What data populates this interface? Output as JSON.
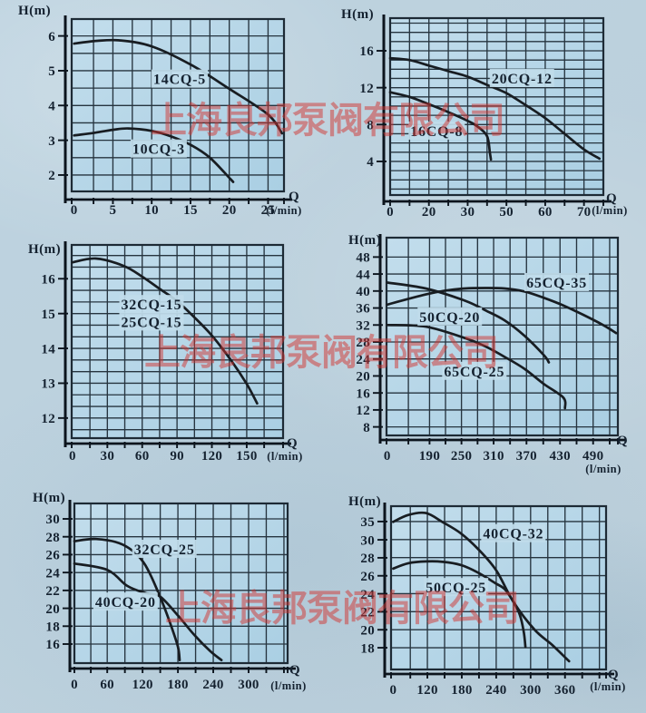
{
  "watermark": {
    "text": "上海良邦泵阀有限公司",
    "color": "#d23430"
  },
  "chart_data": [
    {
      "id": "14CQ-5-10CQ-3",
      "type": "line",
      "y_axis_label": "H(m)",
      "x_axis_label": "Q",
      "x_axis_unit": "(l/min)",
      "x_ticks": [
        [
          "0",
          0
        ],
        [
          "5",
          5
        ],
        [
          "10",
          10
        ],
        [
          "15",
          15
        ],
        [
          "20",
          20
        ],
        [
          "25",
          25
        ]
      ],
      "y_ticks": [
        [
          "6",
          6
        ],
        [
          "5",
          5
        ],
        [
          "4",
          4
        ],
        [
          "3",
          3
        ],
        [
          "2",
          2
        ]
      ],
      "x_stops": [
        [
          0,
          0.0115
        ],
        [
          25,
          0.925
        ]
      ],
      "y_stops": [
        [
          6,
          0.098
        ],
        [
          2,
          0.905
        ]
      ],
      "series": [
        {
          "name": "14CQ-5",
          "points": [
            [
              0,
              5.78
            ],
            [
              3,
              5.86
            ],
            [
              6,
              5.87
            ],
            [
              10,
              5.7
            ],
            [
              15,
              5.18
            ],
            [
              20,
              4.48
            ],
            [
              25,
              3.74
            ],
            [
              26.8,
              3.2
            ]
          ]
        },
        {
          "name": "10CQ-3",
          "points": [
            [
              0,
              3.14
            ],
            [
              2.5,
              3.21
            ],
            [
              5,
              3.3
            ],
            [
              7,
              3.34
            ],
            [
              10,
              3.27
            ],
            [
              12.5,
              3.11
            ],
            [
              15,
              2.87
            ],
            [
              17.5,
              2.5
            ],
            [
              20,
              1.92
            ],
            [
              20.5,
              1.8
            ]
          ]
        }
      ],
      "curve_labels": [
        {
          "text": "14CQ-5",
          "at": [
            13.6,
            4.76
          ]
        },
        {
          "text": "10CQ-3",
          "at": [
            10.9,
            2.75
          ]
        }
      ]
    },
    {
      "id": "20CQ-12-16CQ-8",
      "type": "line",
      "y_axis_label": "H(m)",
      "x_axis_label": "Q",
      "x_axis_unit": "(l/min)",
      "x_ticks": [
        [
          "0",
          0
        ],
        [
          "20",
          20
        ],
        [
          "30",
          30
        ],
        [
          "50",
          50
        ],
        [
          "60",
          60
        ],
        [
          "70",
          70
        ]
      ],
      "y_ticks": [
        [
          "16",
          16
        ],
        [
          "12",
          12
        ],
        [
          "8",
          8
        ],
        [
          "4",
          4
        ]
      ],
      "x_stops": [
        [
          0,
          0.0
        ],
        [
          20,
          0.1818
        ],
        [
          30,
          0.3636
        ],
        [
          50,
          0.5455
        ],
        [
          60,
          0.7273
        ],
        [
          70,
          0.9091
        ]
      ],
      "y_stops": [
        [
          16,
          0.1846
        ],
        [
          4,
          0.81
        ]
      ],
      "series": [
        {
          "name": "20CQ-12",
          "points": [
            [
              0,
              15.2
            ],
            [
              10,
              15.0
            ],
            [
              20,
              14.4
            ],
            [
              25,
              13.8
            ],
            [
              30,
              13.2
            ],
            [
              40,
              12.3
            ],
            [
              50,
              11.4
            ],
            [
              55,
              10.1
            ],
            [
              60,
              8.7
            ],
            [
              65,
              7.0
            ],
            [
              70,
              5.3
            ],
            [
              74,
              4.3
            ]
          ]
        },
        {
          "name": "16CQ-8",
          "points": [
            [
              0,
              11.5
            ],
            [
              10,
              11.0
            ],
            [
              20,
              10.2
            ],
            [
              25,
              9.35
            ],
            [
              30,
              8.4
            ],
            [
              35,
              7.8
            ],
            [
              40,
              6.75
            ],
            [
              41.5,
              4.9
            ],
            [
              42,
              4.2
            ]
          ]
        }
      ],
      "curve_labels": [
        {
          "text": "20CQ-12",
          "at": [
            54,
            13.0
          ]
        },
        {
          "text": "16CQ-8",
          "at": [
            22,
            7.3
          ]
        }
      ]
    },
    {
      "id": "32CQ-15-25CQ-15",
      "type": "line",
      "y_axis_label": "H(m)",
      "x_axis_label": "Q",
      "x_axis_unit": "(l/min)",
      "x_ticks": [
        [
          "0",
          0
        ],
        [
          "30",
          30
        ],
        [
          "60",
          60
        ],
        [
          "90",
          90
        ],
        [
          "120",
          120
        ],
        [
          "150",
          150
        ]
      ],
      "y_ticks": [
        [
          "16",
          16
        ],
        [
          "15",
          15
        ],
        [
          "14",
          14
        ],
        [
          "13",
          13
        ],
        [
          "12",
          12
        ]
      ],
      "x_stops": [
        [
          0,
          0.004
        ],
        [
          150,
          0.828
        ]
      ],
      "y_stops": [
        [
          16,
          0.175
        ],
        [
          12,
          0.896
        ]
      ],
      "series": [
        {
          "name": "32CQ-15 / 25CQ-15",
          "points": [
            [
              0,
              16.47
            ],
            [
              20,
              16.58
            ],
            [
              44,
              16.37
            ],
            [
              60,
              16.06
            ],
            [
              75,
              15.71
            ],
            [
              90,
              15.36
            ],
            [
              105,
              14.89
            ],
            [
              120,
              14.37
            ],
            [
              136,
              13.68
            ],
            [
              150,
              12.98
            ],
            [
              159,
              12.42
            ]
          ]
        }
      ],
      "curve_labels": [
        {
          "text": "32CQ-15",
          "at": [
            68,
            15.26
          ]
        },
        {
          "text": "25CQ-15",
          "at": [
            68,
            14.76
          ]
        }
      ]
    },
    {
      "id": "65CQ-35-50CQ-20-65CQ-25",
      "type": "line",
      "y_axis_label": "H(m)",
      "x_axis_label": "Q",
      "x_axis_unit": "(l/min)",
      "x_ticks": [
        [
          "0",
          0
        ],
        [
          "190",
          190
        ],
        [
          "250",
          250
        ],
        [
          "310",
          310
        ],
        [
          "370",
          370
        ],
        [
          "430",
          430
        ],
        [
          "490",
          490
        ]
      ],
      "y_ticks": [
        [
          "48",
          48
        ],
        [
          "44",
          44
        ],
        [
          "40",
          40
        ],
        [
          "36",
          36
        ],
        [
          "32",
          32
        ],
        [
          "28",
          28
        ],
        [
          "24",
          24
        ],
        [
          "20",
          20
        ],
        [
          "16",
          16
        ],
        [
          "12",
          12
        ],
        [
          "8",
          8
        ]
      ],
      "x_stops": [
        [
          0,
          0.003
        ],
        [
          190,
          0.186
        ],
        [
          250,
          0.324
        ],
        [
          310,
          0.463
        ],
        [
          370,
          0.605
        ],
        [
          430,
          0.75
        ],
        [
          490,
          0.893
        ]
      ],
      "y_stops": [
        [
          48,
          0.098
        ],
        [
          8,
          0.957
        ]
      ],
      "series": [
        {
          "name": "50CQ-20",
          "points": [
            [
              0,
              42.0
            ],
            [
              173,
              40.6
            ],
            [
              257,
              37.7
            ],
            [
              294,
              35.5
            ],
            [
              330,
              33.1
            ],
            [
              366,
              29.5
            ],
            [
              401,
              24.9
            ],
            [
              410,
              23.2
            ]
          ]
        },
        {
          "name": "65CQ-25",
          "points": [
            [
              0,
              32.0
            ],
            [
              173,
              31.6
            ],
            [
              257,
              28.9
            ],
            [
              294,
              27.0
            ],
            [
              330,
              24.5
            ],
            [
              366,
              21.7
            ],
            [
              401,
              18.1
            ],
            [
              436,
              14.9
            ],
            [
              439,
              12.4
            ]
          ]
        },
        {
          "name": "65CQ-35",
          "points": [
            [
              0,
              36.8
            ],
            [
              173,
              39.2
            ],
            [
              220,
              40.1
            ],
            [
              257,
              40.6
            ],
            [
              294,
              40.7
            ],
            [
              330,
              40.6
            ],
            [
              366,
              39.9
            ],
            [
              401,
              38.4
            ],
            [
              436,
              36.6
            ],
            [
              472,
              34.4
            ],
            [
              508,
              32.0
            ],
            [
              532,
              30.1
            ]
          ]
        }
      ],
      "curve_labels": [
        {
          "text": "65CQ-35",
          "at": [
            424,
            42.0
          ]
        },
        {
          "text": "50CQ-20",
          "at": [
            228,
            33.9
          ]
        },
        {
          "text": "65CQ-25",
          "at": [
            274,
            21.1
          ]
        }
      ]
    },
    {
      "id": "32CQ-25-40CQ-20",
      "type": "line",
      "y_axis_label": "H(m)",
      "x_axis_label": "Q",
      "x_axis_unit": "(l/min)",
      "x_ticks": [
        [
          "0",
          0
        ],
        [
          "60",
          60
        ],
        [
          "120",
          120
        ],
        [
          "180",
          180
        ],
        [
          "240",
          240
        ],
        [
          "300",
          300
        ]
      ],
      "y_ticks": [
        [
          "30",
          30
        ],
        [
          "28",
          28
        ],
        [
          "26",
          26
        ],
        [
          "24",
          24
        ],
        [
          "22",
          22
        ],
        [
          "20",
          20
        ],
        [
          "18",
          18
        ],
        [
          "16",
          16
        ]
      ],
      "x_stops": [
        [
          0,
          0.0
        ],
        [
          60,
          0.154
        ],
        [
          300,
          0.817
        ]
      ],
      "y_stops": [
        [
          30,
          0.0966
        ],
        [
          16,
          0.8807
        ]
      ],
      "series": [
        {
          "name": "32CQ-25",
          "points": [
            [
              0,
              27.5
            ],
            [
              40,
              27.75
            ],
            [
              87,
              27.1
            ],
            [
              122,
              25.1
            ],
            [
              149,
              21.4
            ],
            [
              167,
              18.3
            ],
            [
              180,
              15.7
            ],
            [
              183,
              14.2
            ]
          ]
        },
        {
          "name": "40CQ-20",
          "points": [
            [
              0,
              25.0
            ],
            [
              60,
              24.3
            ],
            [
              94,
              22.5
            ],
            [
              125,
              21.7
            ],
            [
              149,
              21.35
            ],
            [
              180,
              19.2
            ],
            [
              208,
              17.0
            ],
            [
              235,
              15.2
            ],
            [
              254,
              14.2
            ]
          ]
        }
      ],
      "curve_labels": [
        {
          "text": "32CQ-25",
          "at": [
            157,
            26.6
          ]
        },
        {
          "text": "40CQ-20",
          "at": [
            91,
            20.7
          ]
        }
      ]
    },
    {
      "id": "40CQ-32-50CQ-25",
      "type": "line",
      "y_axis_label": "H(m)",
      "x_axis_label": "Q",
      "x_axis_unit": "(l/min)",
      "x_ticks": [
        [
          "0",
          0
        ],
        [
          "120",
          120
        ],
        [
          "180",
          180
        ],
        [
          "240",
          240
        ],
        [
          "300",
          300
        ],
        [
          "360",
          360
        ]
      ],
      "y_ticks": [
        [
          "35",
          35
        ],
        [
          "30",
          30
        ],
        [
          "28",
          28
        ],
        [
          "26",
          26
        ],
        [
          "24",
          24
        ],
        [
          "22",
          22
        ],
        [
          "20",
          20
        ],
        [
          "18",
          18
        ]
      ],
      "x_stops": [
        [
          0,
          0.01
        ],
        [
          120,
          0.169
        ],
        [
          360,
          0.809
        ]
      ],
      "y_stops": [
        [
          35,
          0.094
        ],
        [
          30,
          0.206
        ],
        [
          18,
          0.867
        ]
      ],
      "series": [
        {
          "name": "40CQ-32",
          "points": [
            [
              0,
              34.9
            ],
            [
              53,
              36.8
            ],
            [
              115,
              37.3
            ],
            [
              147,
              34.8
            ],
            [
              178,
              31.8
            ],
            [
              208,
              29.0
            ],
            [
              240,
              26.6
            ],
            [
              270,
              23.1
            ],
            [
              307,
              20.0
            ],
            [
              338,
              18.3
            ],
            [
              367,
              16.5
            ]
          ]
        },
        {
          "name": "50CQ-25",
          "points": [
            [
              0,
              26.8
            ],
            [
              53,
              27.4
            ],
            [
              117,
              27.6
            ],
            [
              147,
              27.55
            ],
            [
              178,
              27.2
            ],
            [
              207,
              26.4
            ],
            [
              238,
              25.2
            ],
            [
              255,
              24.5
            ],
            [
              270,
              23.1
            ],
            [
              281,
              21.7
            ],
            [
              288,
              19.8
            ],
            [
              291,
              18.1
            ]
          ]
        }
      ],
      "curve_labels": [
        {
          "text": "40CQ-32",
          "at": [
            270,
            31.7
          ]
        },
        {
          "text": "50CQ-25",
          "at": [
            170,
            24.7
          ]
        }
      ]
    }
  ]
}
